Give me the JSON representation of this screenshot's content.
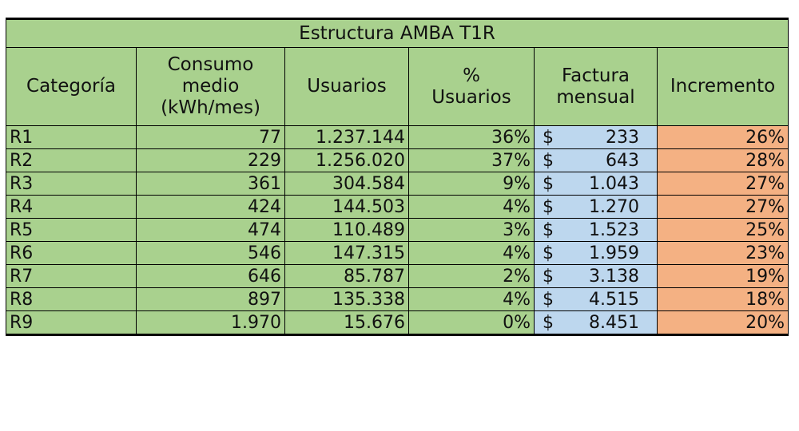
{
  "table": {
    "title": "Estructura AMBA T1R",
    "headers": {
      "categoria": "Categoría",
      "consumo": [
        "Consumo",
        "medio",
        "(kWh/mes)"
      ],
      "usuarios": "Usuarios",
      "pct_usuarios": [
        "%",
        "Usuarios"
      ],
      "factura": [
        "Factura",
        "mensual"
      ],
      "incremento": "Incremento"
    },
    "currency_symbol": "$",
    "rows": [
      {
        "categoria": "R1",
        "consumo": "77",
        "usuarios": "1.237.144",
        "pct_usuarios": "36%",
        "factura": "233",
        "incremento": "26%"
      },
      {
        "categoria": "R2",
        "consumo": "229",
        "usuarios": "1.256.020",
        "pct_usuarios": "37%",
        "factura": "643",
        "incremento": "28%"
      },
      {
        "categoria": "R3",
        "consumo": "361",
        "usuarios": "304.584",
        "pct_usuarios": "9%",
        "factura": "1.043",
        "incremento": "27%"
      },
      {
        "categoria": "R4",
        "consumo": "424",
        "usuarios": "144.503",
        "pct_usuarios": "4%",
        "factura": "1.270",
        "incremento": "27%"
      },
      {
        "categoria": "R5",
        "consumo": "474",
        "usuarios": "110.489",
        "pct_usuarios": "3%",
        "factura": "1.523",
        "incremento": "25%"
      },
      {
        "categoria": "R6",
        "consumo": "546",
        "usuarios": "147.315",
        "pct_usuarios": "4%",
        "factura": "1.959",
        "incremento": "23%"
      },
      {
        "categoria": "R7",
        "consumo": "646",
        "usuarios": "85.787",
        "pct_usuarios": "2%",
        "factura": "3.138",
        "incremento": "19%"
      },
      {
        "categoria": "R8",
        "consumo": "897",
        "usuarios": "135.338",
        "pct_usuarios": "4%",
        "factura": "4.515",
        "incremento": "18%"
      },
      {
        "categoria": "R9",
        "consumo": "1.970",
        "usuarios": "15.676",
        "pct_usuarios": "0%",
        "factura": "8.451",
        "incremento": "20%"
      }
    ]
  },
  "colors": {
    "green": "#a9d18e",
    "blue": "#bdd7ee",
    "orange": "#f4b183"
  }
}
